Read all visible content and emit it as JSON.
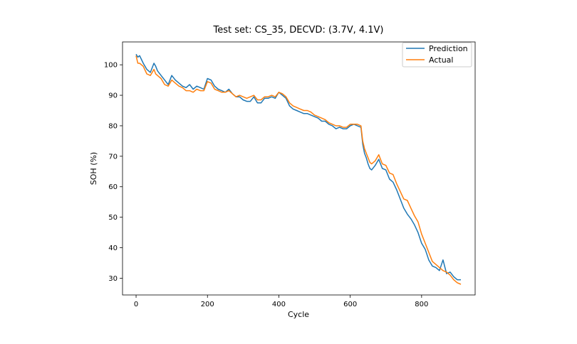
{
  "chart_data": {
    "type": "line",
    "title": "Test set: CS_35, DECVD: (3.7V, 4.1V)",
    "xlabel": "Cycle",
    "ylabel": "SOH (%)",
    "xlim": [
      -38,
      950
    ],
    "ylim": [
      24.5,
      107.5
    ],
    "xticks": [
      0,
      200,
      400,
      600,
      800
    ],
    "yticks": [
      30,
      40,
      50,
      60,
      70,
      80,
      90,
      100
    ],
    "grid": false,
    "legend": "top-right",
    "series": [
      {
        "name": "Prediction",
        "color": "#1f77b4",
        "x": [
          0,
          5,
          10,
          20,
          30,
          40,
          50,
          55,
          60,
          70,
          80,
          90,
          100,
          110,
          120,
          130,
          140,
          150,
          160,
          170,
          180,
          190,
          200,
          210,
          220,
          230,
          240,
          250,
          260,
          270,
          280,
          290,
          300,
          310,
          320,
          330,
          340,
          350,
          360,
          370,
          380,
          390,
          400,
          410,
          420,
          430,
          440,
          450,
          460,
          470,
          480,
          490,
          500,
          510,
          520,
          530,
          540,
          550,
          560,
          570,
          580,
          590,
          600,
          610,
          620,
          630,
          635,
          640,
          645,
          650,
          655,
          660,
          670,
          680,
          690,
          700,
          710,
          720,
          730,
          740,
          750,
          760,
          770,
          780,
          790,
          800,
          810,
          820,
          830,
          840,
          850,
          860,
          870,
          880,
          890,
          900,
          910
        ],
        "values": [
          103.5,
          102.5,
          103.0,
          100.5,
          98.5,
          97.5,
          100.5,
          99.5,
          98.0,
          96.5,
          95.0,
          93.5,
          96.5,
          95.0,
          94.0,
          93.0,
          92.5,
          93.5,
          92.0,
          93.0,
          92.5,
          92.0,
          95.5,
          95.0,
          93.0,
          92.0,
          91.5,
          91.0,
          92.0,
          90.5,
          89.5,
          89.5,
          88.5,
          88.0,
          88.0,
          89.5,
          87.5,
          87.5,
          89.0,
          89.0,
          89.5,
          89.0,
          91.0,
          90.0,
          89.0,
          86.5,
          85.5,
          85.0,
          84.5,
          84.0,
          84.0,
          83.5,
          83.0,
          82.5,
          81.5,
          81.5,
          80.5,
          80.0,
          79.0,
          79.5,
          79.0,
          79.0,
          80.0,
          80.5,
          80.0,
          79.5,
          74.0,
          71.0,
          69.5,
          67.5,
          66.0,
          65.5,
          67.0,
          69.0,
          66.0,
          65.5,
          62.5,
          61.5,
          59.0,
          56.0,
          53.0,
          51.0,
          49.5,
          47.5,
          45.0,
          41.5,
          39.5,
          36.0,
          34.0,
          33.5,
          32.5,
          36.0,
          31.5,
          32.0,
          30.5,
          29.5,
          29.5
        ]
      },
      {
        "name": "Actual",
        "color": "#ff7f0e",
        "x": [
          0,
          5,
          10,
          20,
          30,
          40,
          50,
          55,
          60,
          70,
          80,
          90,
          100,
          110,
          120,
          130,
          140,
          150,
          160,
          170,
          180,
          190,
          200,
          210,
          220,
          230,
          240,
          250,
          260,
          270,
          280,
          290,
          300,
          310,
          320,
          330,
          340,
          350,
          360,
          370,
          380,
          390,
          400,
          410,
          420,
          430,
          440,
          450,
          460,
          470,
          480,
          490,
          500,
          510,
          520,
          530,
          540,
          550,
          560,
          570,
          580,
          590,
          600,
          610,
          620,
          630,
          635,
          640,
          645,
          650,
          655,
          660,
          670,
          680,
          690,
          700,
          710,
          720,
          730,
          740,
          750,
          760,
          770,
          780,
          790,
          800,
          810,
          820,
          830,
          840,
          850,
          860,
          870,
          880,
          890,
          900,
          910
        ],
        "values": [
          103.0,
          100.5,
          100.5,
          99.5,
          97.0,
          96.5,
          98.5,
          97.0,
          96.5,
          95.5,
          93.5,
          93.0,
          95.0,
          94.0,
          93.0,
          92.5,
          91.5,
          91.5,
          91.0,
          92.0,
          91.5,
          91.5,
          94.5,
          94.0,
          92.0,
          91.5,
          91.0,
          91.0,
          91.5,
          90.5,
          89.5,
          90.0,
          89.5,
          89.0,
          89.5,
          90.0,
          88.5,
          88.5,
          89.5,
          89.5,
          90.0,
          89.5,
          91.0,
          90.5,
          89.5,
          87.5,
          86.5,
          86.0,
          85.5,
          85.0,
          85.0,
          84.5,
          83.5,
          83.0,
          82.5,
          82.0,
          81.0,
          80.5,
          80.0,
          80.0,
          79.5,
          79.5,
          80.5,
          80.5,
          80.5,
          80.0,
          75.0,
          72.5,
          71.0,
          69.5,
          68.0,
          67.5,
          68.5,
          70.5,
          67.5,
          67.0,
          64.5,
          64.0,
          61.0,
          58.5,
          56.0,
          55.5,
          53.0,
          50.5,
          48.5,
          44.5,
          41.5,
          38.5,
          35.5,
          34.5,
          33.5,
          32.5,
          32.0,
          31.0,
          29.5,
          28.5,
          28.0
        ]
      }
    ]
  }
}
